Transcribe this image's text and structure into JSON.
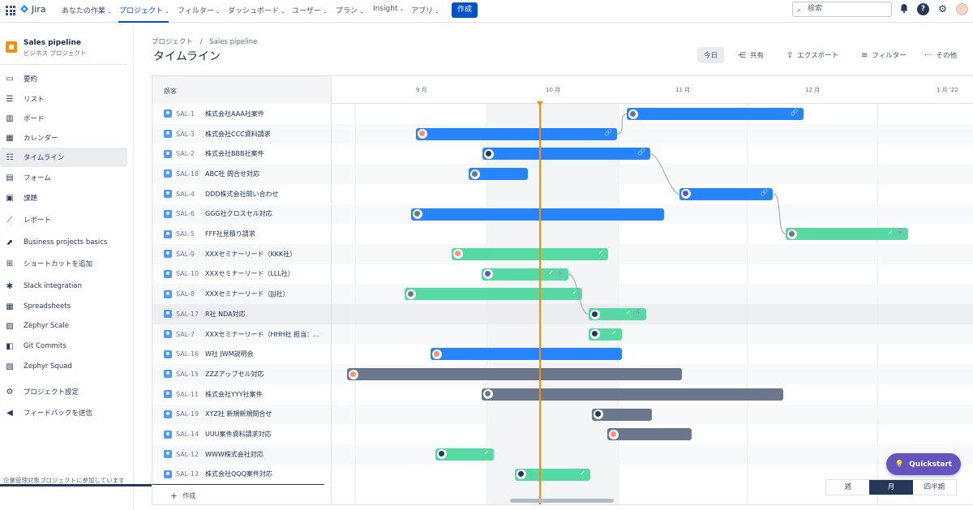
{
  "topnav": {
    "logo": "Jira",
    "items": [
      {
        "label": "あなたの作業",
        "active": false
      },
      {
        "label": "プロジェクト",
        "active": true
      },
      {
        "label": "フィルター",
        "active": false
      },
      {
        "label": "ダッシュボード",
        "active": false
      },
      {
        "label": "ユーザー",
        "active": false
      },
      {
        "label": "プラン",
        "active": false
      },
      {
        "label": "Insight",
        "active": false
      },
      {
        "label": "アプリ",
        "active": false
      }
    ],
    "create": "作成",
    "search_placeholder": "検索"
  },
  "sidebar": {
    "project_name": "Sales pipeline",
    "project_type": "ビジネス プロジェクト",
    "items": [
      {
        "label": "要約",
        "icon": "summary-icon"
      },
      {
        "label": "リスト",
        "icon": "list-icon"
      },
      {
        "label": "ボード",
        "icon": "board-icon"
      },
      {
        "label": "カレンダー",
        "icon": "calendar-icon"
      },
      {
        "label": "タイムライン",
        "icon": "timeline-icon",
        "active": true
      },
      {
        "label": "フォーム",
        "icon": "form-icon"
      },
      {
        "label": "課題",
        "icon": "issues-icon"
      },
      {
        "label": "レポート",
        "icon": "reports-icon"
      },
      {
        "label": "Business projects basics",
        "icon": "external-link-icon"
      },
      {
        "label": "ショートカットを追加",
        "icon": "add-shortcut-icon"
      },
      {
        "label": "Slack integration",
        "icon": "slack-icon"
      },
      {
        "label": "Spreadsheets",
        "icon": "spreadsheet-icon"
      },
      {
        "label": "Zephyr Scale",
        "icon": "zephyr-scale-icon"
      },
      {
        "label": "Git Commits",
        "icon": "git-icon"
      },
      {
        "label": "Zephyr Squad",
        "icon": "zephyr-squad-icon"
      },
      {
        "label": "プロジェクト設定",
        "icon": "gear-icon"
      },
      {
        "label": "フィードバックを送信",
        "icon": "megaphone-icon"
      }
    ],
    "footer": "企業管理対象プロジェクトに参加しています"
  },
  "page": {
    "breadcrumb_root": "プロジェクト",
    "breadcrumb_sep": "/",
    "breadcrumb_project": "Sales pipeline",
    "title": "タイムライン"
  },
  "toolbar": {
    "today": "今日",
    "share": "共有",
    "export": "エクスポート",
    "filter": "フィルター",
    "more": "その他"
  },
  "timeline": {
    "list_header": "顧客",
    "months": [
      "9 月",
      "10 月",
      "11 月",
      "12 月",
      "1 月 '22"
    ],
    "create_label": "作成",
    "rows": [
      {
        "key": "SAL-1",
        "summary": "株式会社AAA社案件",
        "color": "blue",
        "start": 0.459,
        "end": 0.734,
        "av": "#6b778c",
        "marks": "🔗"
      },
      {
        "key": "SAL-3",
        "summary": "株式会社CCC資料請求",
        "color": "blue",
        "start": 0.13,
        "end": 0.444,
        "av": "#ff8f73",
        "marks": "🔗"
      },
      {
        "key": "SAL-2",
        "summary": "株式会社BBB社案件",
        "color": "blue",
        "start": 0.234,
        "end": 0.496,
        "av": "#253858",
        "marks": "🔗"
      },
      {
        "key": "SAL-18",
        "summary": "ABC社 問合せ対応",
        "color": "blue",
        "start": 0.213,
        "end": 0.305,
        "av": "#6b778c",
        "marks": ""
      },
      {
        "key": "SAL-4",
        "summary": "DDD株式会社問い合わせ",
        "color": "blue",
        "start": 0.541,
        "end": 0.687,
        "av": "#6554c0",
        "marks": "🔗"
      },
      {
        "key": "SAL-6",
        "summary": "GGG社クロスセル対応",
        "color": "blue",
        "start": 0.122,
        "end": 0.517,
        "av": "#6b778c",
        "marks": ""
      },
      {
        "key": "SAL-5",
        "summary": "FFF社見積り請求",
        "color": "green",
        "start": 0.707,
        "end": 0.898,
        "av": "#6b778c",
        "marks": "✓ 🔗"
      },
      {
        "key": "SAL-9",
        "summary": "XXXセミナーリード（KKK社）",
        "color": "green",
        "start": 0.186,
        "end": 0.43,
        "av": "#ff8f73",
        "marks": "✓"
      },
      {
        "key": "SAL-10",
        "summary": "XXXセミナーリード（LLL社）",
        "color": "green",
        "start": 0.233,
        "end": 0.368,
        "av": "#6554c0",
        "marks": "✓ 🔗"
      },
      {
        "key": "SAL-8",
        "summary": "XXXセミナーリード（JJJ社）",
        "color": "green",
        "start": 0.113,
        "end": 0.39,
        "av": "#6b778c",
        "marks": "✓"
      },
      {
        "key": "SAL-17",
        "summary": "R社 NDA対応",
        "color": "green",
        "start": 0.399,
        "end": 0.489,
        "av": "#253858",
        "marks": "✓ 🔗"
      },
      {
        "key": "SAL-7",
        "summary": "XXXセミナーリード（HHH社 担当：...",
        "color": "green",
        "start": 0.399,
        "end": 0.451,
        "av": "#253858",
        "marks": "✓"
      },
      {
        "key": "SAL-16",
        "summary": "W社 JWM説明会",
        "color": "blue",
        "start": 0.153,
        "end": 0.451,
        "av": "#ff8f73",
        "marks": ""
      },
      {
        "key": "SAL-15",
        "summary": "ZZZアップセル対応",
        "color": "gray",
        "start": 0.023,
        "end": 0.545,
        "av": "#ff8f73",
        "marks": ""
      },
      {
        "key": "SAL-11",
        "summary": "株式会社YYY社案件",
        "color": "gray",
        "start": 0.232,
        "end": 0.703,
        "av": "#6b778c",
        "marks": ""
      },
      {
        "key": "SAL-19",
        "summary": "XYZ社 新規新規問合せ",
        "color": "gray",
        "start": 0.405,
        "end": 0.498,
        "av": "#253858",
        "marks": ""
      },
      {
        "key": "SAL-14",
        "summary": "UUU案件資料請求対応",
        "color": "gray",
        "start": 0.428,
        "end": 0.56,
        "av": "#ff8f73",
        "marks": ""
      },
      {
        "key": "SAL-12",
        "summary": "WWW株式会社対応",
        "color": "green",
        "start": 0.16,
        "end": 0.252,
        "av": "#253858",
        "marks": "✓"
      },
      {
        "key": "SAL-13",
        "summary": "株式会社QQQ案件対応",
        "color": "green",
        "start": 0.284,
        "end": 0.402,
        "av": "#253858",
        "marks": "✓"
      }
    ]
  },
  "scale": {
    "week": "週",
    "month": "月",
    "quarter": "四半期",
    "active": "month"
  },
  "quickstart": "Quickstart"
}
